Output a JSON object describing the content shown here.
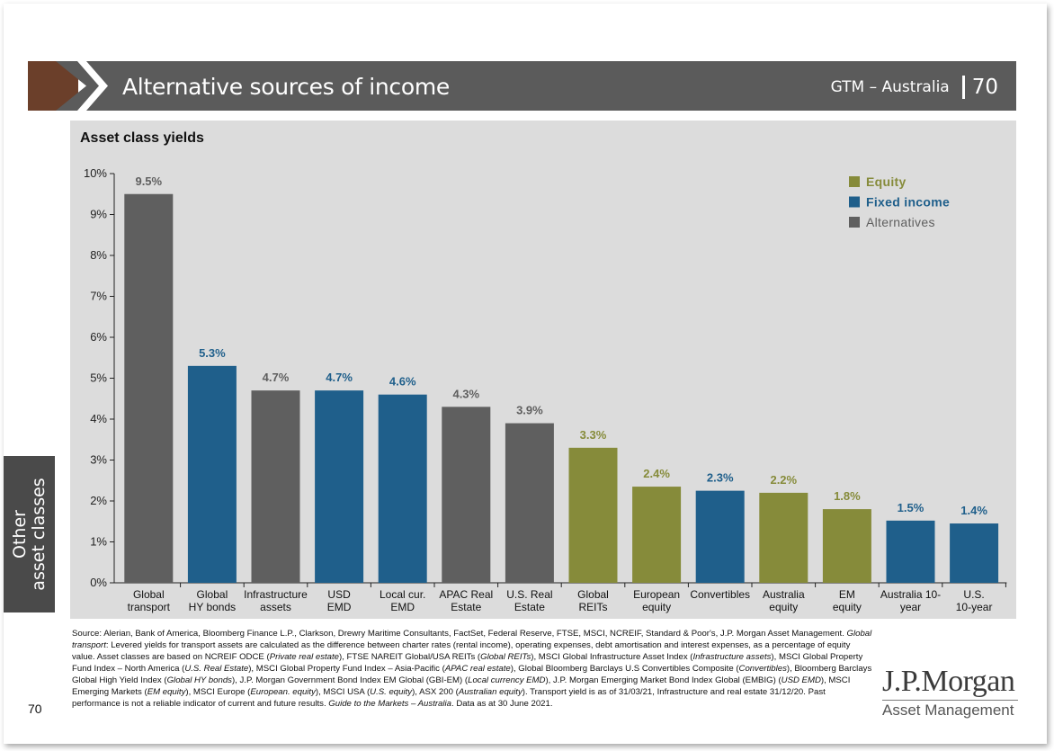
{
  "header": {
    "title": "Alternative sources of income",
    "region": "GTM – Australia",
    "page": "70"
  },
  "side_tab": {
    "line1": "Other",
    "line2": "asset classes"
  },
  "page_number": "70",
  "logo": {
    "main": "J.P.Morgan",
    "sub": "Asset Management"
  },
  "colors": {
    "equity": "#868b3a",
    "fixed_income": "#1f5f8b",
    "alternatives": "#5f5f5f",
    "header": "#5b5b5b",
    "accent": "#6b3f2a",
    "panel": "#dcdcdc"
  },
  "chart_data": {
    "type": "bar",
    "title": "Asset class yields",
    "xlabel": "",
    "ylabel": "",
    "ylim": [
      0,
      10
    ],
    "yticks": [
      "0%",
      "1%",
      "2%",
      "3%",
      "4%",
      "5%",
      "6%",
      "7%",
      "8%",
      "9%",
      "10%"
    ],
    "legend": [
      {
        "label": "Equity",
        "group": "equity"
      },
      {
        "label": "Fixed income",
        "group": "fixed_income"
      },
      {
        "label": "Alternatives",
        "group": "alternatives"
      }
    ],
    "legend_position": "top-right",
    "bars": [
      {
        "label": [
          "Global",
          "transport"
        ],
        "value": 9.5,
        "text": "9.5%",
        "group": "alternatives"
      },
      {
        "label": [
          "Global",
          "HY bonds"
        ],
        "value": 5.3,
        "text": "5.3%",
        "group": "fixed_income"
      },
      {
        "label": [
          "Infrastructure",
          "assets"
        ],
        "value": 4.7,
        "text": "4.7%",
        "group": "alternatives"
      },
      {
        "label": [
          "USD",
          "EMD"
        ],
        "value": 4.7,
        "text": "4.7%",
        "group": "fixed_income"
      },
      {
        "label": [
          "Local cur.",
          "EMD"
        ],
        "value": 4.6,
        "text": "4.6%",
        "group": "fixed_income"
      },
      {
        "label": [
          "APAC Real",
          "Estate"
        ],
        "value": 4.3,
        "text": "4.3%",
        "group": "alternatives"
      },
      {
        "label": [
          "U.S. Real",
          "Estate"
        ],
        "value": 3.9,
        "text": "3.9%",
        "group": "alternatives"
      },
      {
        "label": [
          "Global",
          "REITs"
        ],
        "value": 3.3,
        "text": "3.3%",
        "group": "equity"
      },
      {
        "label": [
          "European",
          "equity"
        ],
        "value": 2.35,
        "text": "2.4%",
        "group": "equity"
      },
      {
        "label": [
          "Convertibles"
        ],
        "value": 2.25,
        "text": "2.3%",
        "group": "fixed_income"
      },
      {
        "label": [
          "Australia",
          "equity"
        ],
        "value": 2.2,
        "text": "2.2%",
        "group": "equity"
      },
      {
        "label": [
          "EM",
          "equity"
        ],
        "value": 1.8,
        "text": "1.8%",
        "group": "equity"
      },
      {
        "label": [
          "Australia 10-",
          "year"
        ],
        "value": 1.52,
        "text": "1.5%",
        "group": "fixed_income"
      },
      {
        "label": [
          "U.S.",
          "10-year"
        ],
        "value": 1.45,
        "text": "1.4%",
        "group": "fixed_income"
      }
    ]
  },
  "footnote": {
    "p1": "Source: Alerian, Bank of America, Bloomberg Finance L.P., Clarkson, Drewry Maritime Consultants, FactSet, Federal Reserve, FTSE, MSCI, NCREIF, Standard & Poor's, J.P. Morgan Asset Management. ",
    "i1": "Global transport",
    "p2": ": Levered yields for transport assets are calculated as the difference between charter rates (rental income), operating expenses, debt amortisation and interest expenses, as a percentage of equity value. Asset classes are based on NCREIF ODCE (",
    "i2": "Private real estate",
    "p3": "), FTSE NAREIT Global/USA REITs (",
    "i3": "Global REITs",
    "p4": "), MSCI Global Infrastructure Asset Index (",
    "i4": "Infrastructure assets",
    "p5": "), MSCI Global Property Fund Index – North America (",
    "i5": "U.S. Real Estate",
    "p6": "), MSCI Global Property Fund Index – Asia-Pacific (",
    "i6": "APAC real estate",
    "p7": "), Global Bloomberg Barclays U.S Convertibles Composite (",
    "i7": "Convertibles",
    "p8": "), Bloomberg Barclays Global High Yield Index (",
    "i8": "Global HY bonds",
    "p9": "), J.P. Morgan Government Bond Index EM Global (GBI-EM) (",
    "i9": "Local currency EMD",
    "p10": "), J.P. Morgan Emerging Market Bond Index Global (EMBIG) (",
    "i10": "USD EMD",
    "p11": "), MSCI Emerging Markets (",
    "i11": "EM equity",
    "p12": "), MSCI Europe (",
    "i12": "European. equity",
    "p13": "), MSCI USA (",
    "i13": "U.S. equity",
    "p14": "), ASX 200 (",
    "i14": "Australian equity",
    "p15": "). Transport yield is as of 31/03/21, Infrastructure and real estate 31/12/20. Past performance is not a reliable indicator of current and future results. ",
    "i15": "Guide to the Markets – Australia",
    "p16": ". Data as at 30 June 2021."
  }
}
